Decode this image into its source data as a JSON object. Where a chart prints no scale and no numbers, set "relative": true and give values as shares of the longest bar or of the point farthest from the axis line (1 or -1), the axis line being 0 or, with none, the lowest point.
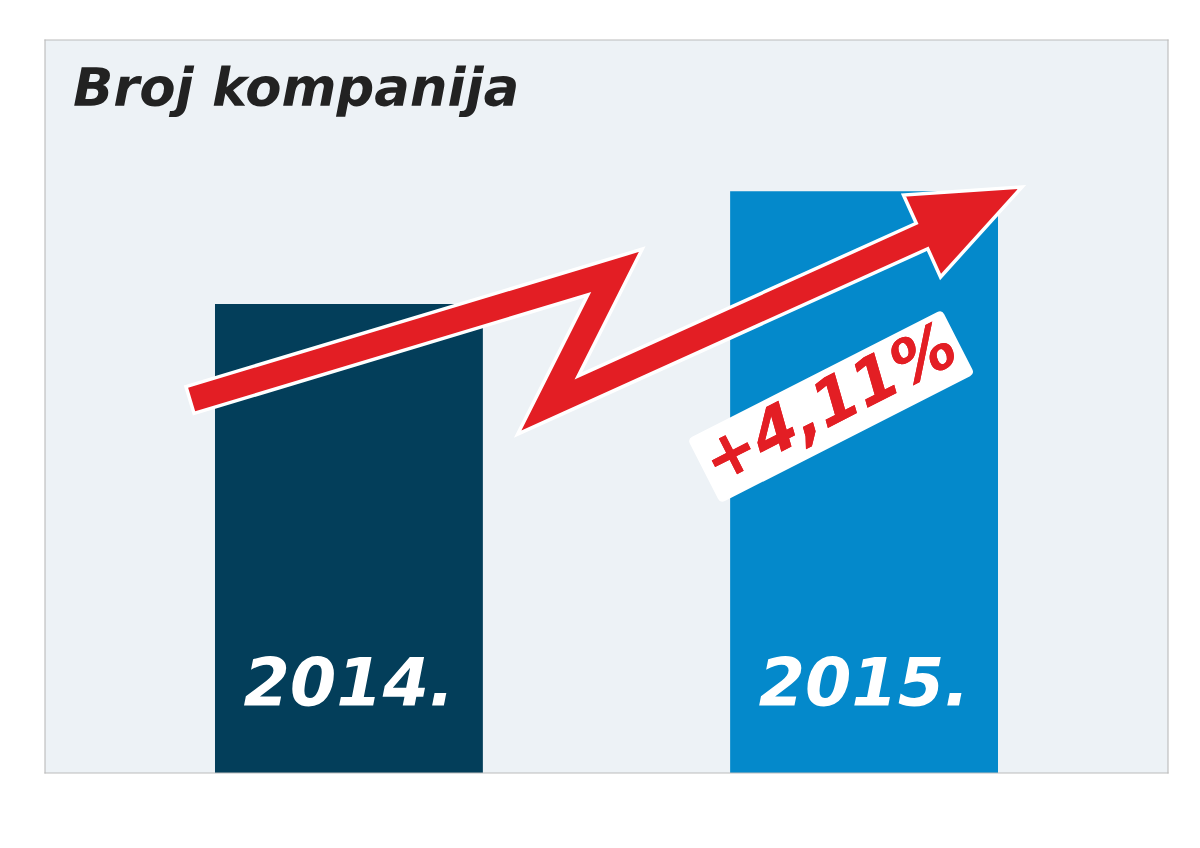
{
  "chart_data": {
    "type": "bar",
    "title": "Broj kompanija",
    "categories": [
      "2014.",
      "2015."
    ],
    "relative": true,
    "colors": [
      "#033e5a",
      "#0489cb"
    ],
    "values": [
      0.806,
      1
    ],
    "annotations": [
      "+4,11%"
    ]
  }
}
